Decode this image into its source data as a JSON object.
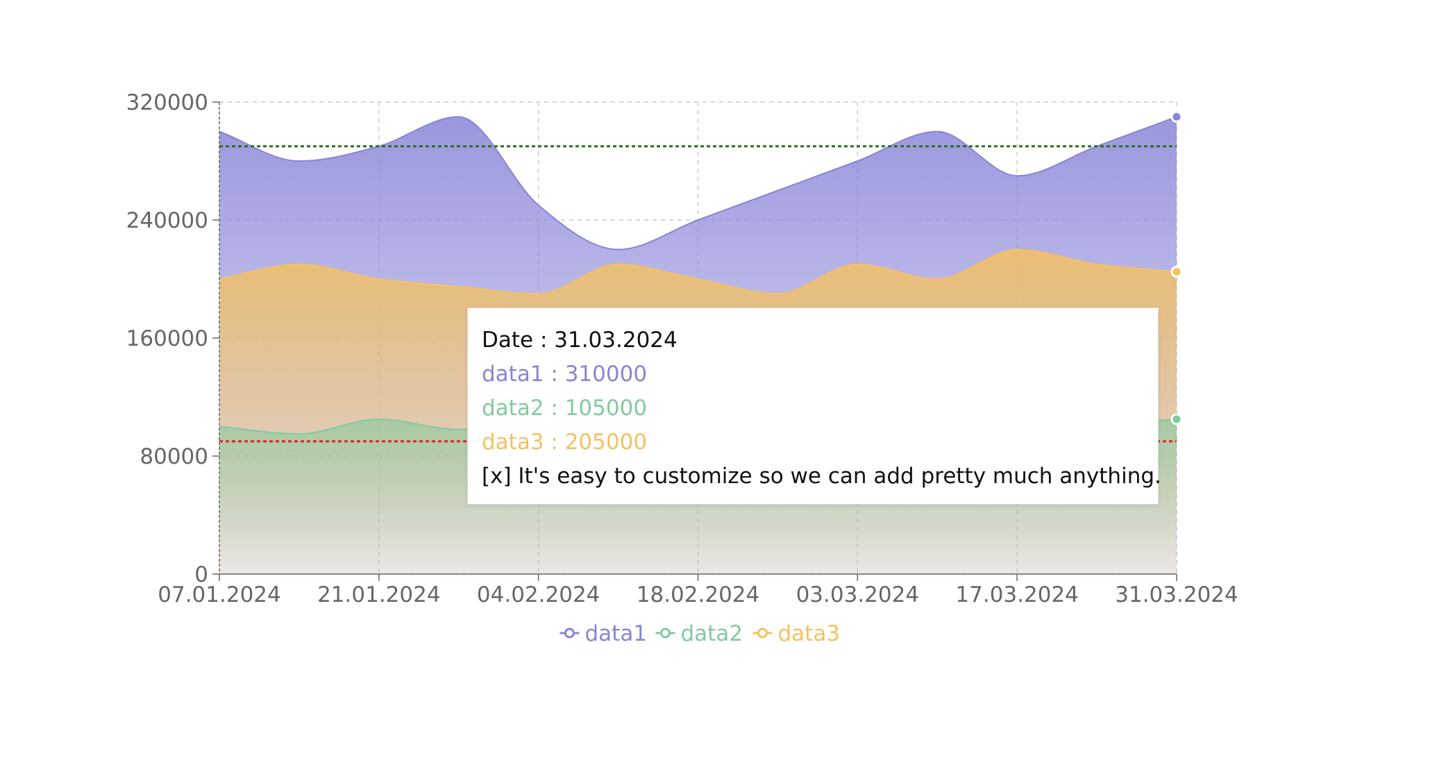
{
  "colors": {
    "data1": "#8884d8",
    "data2": "#82ca9d",
    "data3": "#f5c160"
  },
  "chart_data": {
    "type": "area",
    "x": [
      "07.01.2024",
      "14.01.2024",
      "21.01.2024",
      "28.01.2024",
      "04.02.2024",
      "11.02.2024",
      "18.02.2024",
      "25.02.2024",
      "03.03.2024",
      "10.03.2024",
      "17.03.2024",
      "24.03.2024",
      "31.03.2024"
    ],
    "xticks": [
      "07.01.2024",
      "21.01.2024",
      "04.02.2024",
      "18.02.2024",
      "03.03.2024",
      "17.03.2024",
      "31.03.2024"
    ],
    "yticks": [
      "0",
      "80000",
      "160000",
      "240000",
      "320000"
    ],
    "ylim": [
      0,
      320000
    ],
    "grid": true,
    "legend_position": "bottom",
    "series": [
      {
        "name": "data1",
        "values": [
          300000,
          280000,
          290000,
          310000,
          250000,
          220000,
          240000,
          260000,
          280000,
          300000,
          270000,
          290000,
          310000
        ]
      },
      {
        "name": "data3",
        "values": [
          200000,
          210000,
          200000,
          195000,
          190000,
          210000,
          200000,
          190000,
          210000,
          200000,
          220000,
          210000,
          205000
        ]
      },
      {
        "name": "data2",
        "values": [
          100000,
          95000,
          105000,
          98000,
          102000,
          100000,
          98000,
          101000,
          99000,
          100000,
          103000,
          101000,
          105000
        ]
      }
    ],
    "reference_lines": [
      {
        "y": 290000,
        "color": "#2b6e1b"
      },
      {
        "y": 90000,
        "color": "#e02020"
      }
    ]
  },
  "tooltip": {
    "date": "Date : 31.03.2024",
    "data1": "data1 : 310000",
    "data2": "data2 : 105000",
    "data3": "data3 : 205000",
    "note": "[x] It's easy to customize so we can add pretty much anything."
  },
  "legend": {
    "items": [
      "data1",
      "data2",
      "data3"
    ]
  }
}
